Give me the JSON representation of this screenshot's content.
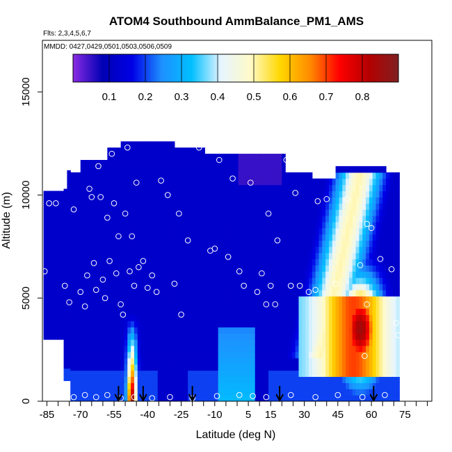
{
  "chart_data": {
    "type": "heatmap",
    "title": "ATOM4 Southbound AmmBalance_PM1_AMS",
    "subtitle_flights": "Flts: 2,3,4,5,6,7",
    "subtitle_dates": "MMDD: 0427,0429,0501,0503,0506,0509",
    "xlabel": "Latitude (deg N)",
    "ylabel": "Altitude (m)",
    "xlim": [
      -87,
      87
    ],
    "ylim": [
      0,
      17500
    ],
    "x_ticks": [
      -85,
      -70,
      -55,
      -40,
      -25,
      -10,
      5,
      15,
      30,
      45,
      60,
      75
    ],
    "x_tick_labels": [
      "-85",
      "-70",
      "-55",
      "-40",
      "-25",
      "-10",
      "5",
      "15",
      "30",
      "45",
      "60",
      "75"
    ],
    "y_ticks": [
      0,
      5000,
      10000,
      15000
    ],
    "y_tick_labels": [
      "0",
      "5000",
      "10000",
      "15000"
    ],
    "colorbar": {
      "range": [
        0.0,
        0.9
      ],
      "ticks": [
        0.1,
        0.2,
        0.3,
        0.4,
        0.5,
        0.6,
        0.7,
        0.8
      ],
      "tick_labels": [
        "0.1",
        "0.2",
        "0.3",
        "0.4",
        "0.5",
        "0.6",
        "0.7",
        "0.8"
      ],
      "colors": [
        "#8a2be2",
        "#0000b4",
        "#0000e6",
        "#1e90ff",
        "#00bfff",
        "#e6f5ff",
        "#fffac8",
        "#ffd700",
        "#ff8c00",
        "#ff0000",
        "#b40000",
        "#802020"
      ]
    },
    "arrows_lat": [
      -53,
      -42,
      -20,
      19,
      61
    ],
    "samples": [
      {
        "lat": -86,
        "alt": 6300
      },
      {
        "lat": -84,
        "alt": 9600
      },
      {
        "lat": -81,
        "alt": 9600
      },
      {
        "lat": -77,
        "alt": 5600
      },
      {
        "lat": -75,
        "alt": 4800
      },
      {
        "lat": -73,
        "alt": 9300
      },
      {
        "lat": -70,
        "alt": 5300
      },
      {
        "lat": -68,
        "alt": 4600
      },
      {
        "lat": -67,
        "alt": 6100
      },
      {
        "lat": -66,
        "alt": 10300
      },
      {
        "lat": -65,
        "alt": 9900
      },
      {
        "lat": -64,
        "alt": 6700
      },
      {
        "lat": -63,
        "alt": 5400
      },
      {
        "lat": -62,
        "alt": 11400
      },
      {
        "lat": -61,
        "alt": 9900
      },
      {
        "lat": -60,
        "alt": 5900
      },
      {
        "lat": -59,
        "alt": 5000
      },
      {
        "lat": -58,
        "alt": 8900
      },
      {
        "lat": -57,
        "alt": 6800
      },
      {
        "lat": -56,
        "alt": 12000
      },
      {
        "lat": -55,
        "alt": 9600
      },
      {
        "lat": -54,
        "alt": 6200
      },
      {
        "lat": -53,
        "alt": 8000
      },
      {
        "lat": -52,
        "alt": 4700
      },
      {
        "lat": -51,
        "alt": 4200
      },
      {
        "lat": -50,
        "alt": 9100
      },
      {
        "lat": -49,
        "alt": 12300
      },
      {
        "lat": -48,
        "alt": 6300
      },
      {
        "lat": -47,
        "alt": 8000
      },
      {
        "lat": -46,
        "alt": 5600
      },
      {
        "lat": -45,
        "alt": 10600
      },
      {
        "lat": -44,
        "alt": 6500
      },
      {
        "lat": -42,
        "alt": 6800
      },
      {
        "lat": -40,
        "alt": 5500
      },
      {
        "lat": -38,
        "alt": 6100
      },
      {
        "lat": -36,
        "alt": 5300
      },
      {
        "lat": -34,
        "alt": 10700
      },
      {
        "lat": -31,
        "alt": 10000
      },
      {
        "lat": -28,
        "alt": 5700
      },
      {
        "lat": -26,
        "alt": 9100
      },
      {
        "lat": -25,
        "alt": 4200
      },
      {
        "lat": -22,
        "alt": 7800
      },
      {
        "lat": -17,
        "alt": 12300
      },
      {
        "lat": -12,
        "alt": 7300
      },
      {
        "lat": -10,
        "alt": 7400
      },
      {
        "lat": -8,
        "alt": 11700
      },
      {
        "lat": -4,
        "alt": 7000
      },
      {
        "lat": -2,
        "alt": 10800
      },
      {
        "lat": 1,
        "alt": 6300
      },
      {
        "lat": 3,
        "alt": 5600
      },
      {
        "lat": 6,
        "alt": 10600
      },
      {
        "lat": 9,
        "alt": 5300
      },
      {
        "lat": 11,
        "alt": 6200
      },
      {
        "lat": 13,
        "alt": 4700
      },
      {
        "lat": 14,
        "alt": 9100
      },
      {
        "lat": 15,
        "alt": 5600
      },
      {
        "lat": 17,
        "alt": 4700
      },
      {
        "lat": 18,
        "alt": 7800
      },
      {
        "lat": 22,
        "alt": 11700
      },
      {
        "lat": 24,
        "alt": 5600
      },
      {
        "lat": 26,
        "alt": 10100
      },
      {
        "lat": 28,
        "alt": 5600
      },
      {
        "lat": 32,
        "alt": 5300
      },
      {
        "lat": 35,
        "alt": 5400
      },
      {
        "lat": 36,
        "alt": 9700
      },
      {
        "lat": 40,
        "alt": 9800
      },
      {
        "lat": 44,
        "alt": 5700
      },
      {
        "lat": 49,
        "alt": 9800
      },
      {
        "lat": 55,
        "alt": 6600
      },
      {
        "lat": 57,
        "alt": 2200
      },
      {
        "lat": 58,
        "alt": 4700
      },
      {
        "lat": 58,
        "alt": 8600
      },
      {
        "lat": 60,
        "alt": 8400
      },
      {
        "lat": 62,
        "alt": 11600
      },
      {
        "lat": 64,
        "alt": 6900
      },
      {
        "lat": 69,
        "alt": 6400
      },
      {
        "lat": 71,
        "alt": 3800
      },
      {
        "lat": 72,
        "alt": 3200
      },
      {
        "lat": -73,
        "alt": 200
      },
      {
        "lat": -68,
        "alt": 300
      },
      {
        "lat": -63,
        "alt": 200
      },
      {
        "lat": -58,
        "alt": 300
      },
      {
        "lat": -52,
        "alt": 150
      },
      {
        "lat": -46,
        "alt": 200
      },
      {
        "lat": -38,
        "alt": 150
      },
      {
        "lat": -30,
        "alt": 200
      },
      {
        "lat": -20,
        "alt": 150
      },
      {
        "lat": -9,
        "alt": 250
      },
      {
        "lat": 1,
        "alt": 300
      },
      {
        "lat": 7,
        "alt": 250
      },
      {
        "lat": 13,
        "alt": 200
      },
      {
        "lat": 24,
        "alt": 300
      },
      {
        "lat": 35,
        "alt": 200
      },
      {
        "lat": 45,
        "alt": 300
      },
      {
        "lat": 56,
        "alt": 200
      },
      {
        "lat": 66,
        "alt": 300
      }
    ]
  }
}
